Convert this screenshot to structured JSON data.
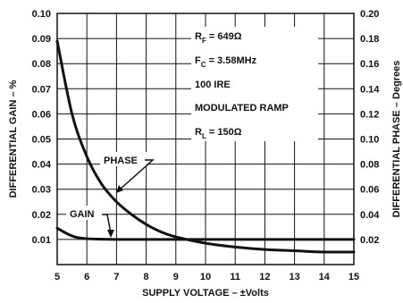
{
  "chart_data": {
    "type": "line",
    "xlabel": "SUPPLY VOLTAGE – ±Volts",
    "ylabel_left": "DIFFERENTIAL GAIN – %",
    "ylabel_right": "DIFFERENTIAL PHASE – Degrees",
    "xlim": [
      5,
      15
    ],
    "ylim_left": [
      0,
      0.1
    ],
    "ylim_right": [
      0,
      0.2
    ],
    "grid": true,
    "x_ticks": [
      "5",
      "6",
      "7",
      "8",
      "9",
      "10",
      "11",
      "12",
      "13",
      "14",
      "15"
    ],
    "y_left_ticks": [
      "0.01",
      "0.02",
      "0.03",
      "0.04",
      "0.05",
      "0.06",
      "0.07",
      "0.08",
      "0.09",
      "0.10"
    ],
    "y_right_ticks": [
      "0.02",
      "0.04",
      "0.06",
      "0.08",
      "0.10",
      "0.12",
      "0.14",
      "0.16",
      "0.18",
      "0.20"
    ],
    "series": [
      {
        "name": "PHASE",
        "axis": "right",
        "x": [
          5.0,
          5.5,
          6.0,
          6.5,
          7.0,
          7.5,
          8.0,
          8.5,
          9.0,
          10.0,
          11.0,
          12.0,
          13.0,
          14.0,
          15.0
        ],
        "y": [
          0.178,
          0.12,
          0.086,
          0.064,
          0.05,
          0.04,
          0.032,
          0.026,
          0.022,
          0.017,
          0.014,
          0.012,
          0.011,
          0.01,
          0.01
        ]
      },
      {
        "name": "GAIN",
        "axis": "left",
        "x": [
          5.0,
          5.3,
          5.6,
          6.0,
          6.5,
          7.0,
          8.0,
          9.0,
          10.0,
          11.0,
          12.0,
          13.0,
          14.0,
          15.0
        ],
        "y": [
          0.0145,
          0.0125,
          0.011,
          0.0103,
          0.0101,
          0.01,
          0.01,
          0.01,
          0.01,
          0.01,
          0.01,
          0.01,
          0.01,
          0.01
        ]
      }
    ],
    "annotations": {
      "phase_label": "PHASE",
      "gain_label": "GAIN",
      "conditions": [
        "R F = 649Ω",
        "F C = 3.58MHz",
        "100 IRE",
        "MODULATED RAMP",
        "R L = 150Ω"
      ]
    },
    "conditions_parts": [
      {
        "main": "R",
        "sub": "F",
        "rest": " = 649Ω"
      },
      {
        "main": "F",
        "sub": "C",
        "rest": " = 3.58MHz"
      },
      {
        "main": "100 IRE",
        "sub": "",
        "rest": ""
      },
      {
        "main": "MODULATED RAMP",
        "sub": "",
        "rest": ""
      },
      {
        "main": "R",
        "sub": "L",
        "rest": " = 150Ω"
      }
    ]
  }
}
